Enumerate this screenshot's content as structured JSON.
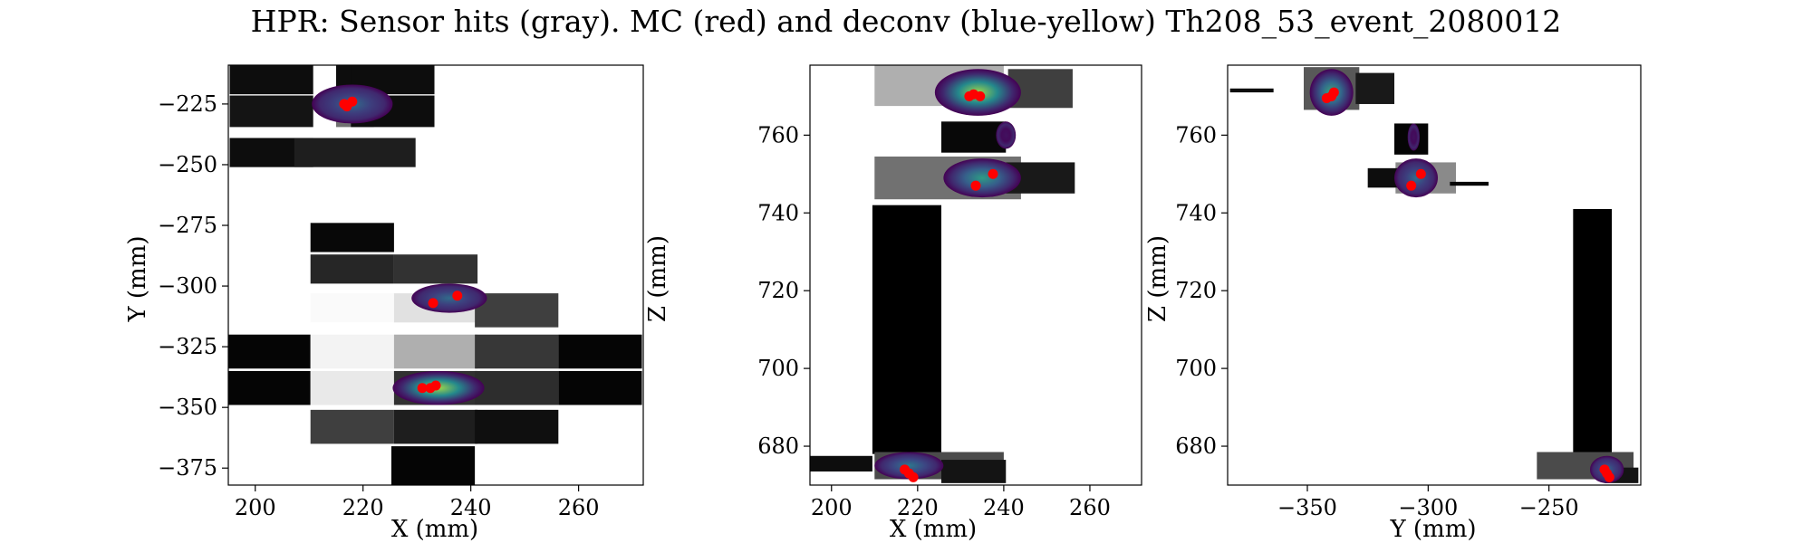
{
  "chart_data": {
    "type": "heatmap",
    "title": "HPR: Sensor hits (gray). MC (red) and deconv (blue-yellow) Th208_53_event_2080012",
    "colors": {
      "mc": "#ff0000",
      "deconv_low": "#440154",
      "deconv_mid": "#21918c",
      "deconv_high": "#fde725"
    },
    "panels": [
      {
        "xlabel": "X (mm)",
        "ylabel": "Y (mm)",
        "xlim": [
          195,
          272
        ],
        "ylim": [
          -382,
          -209
        ],
        "xticks": [
          200,
          220,
          240,
          260
        ],
        "yticks": [
          -375,
          -350,
          -325,
          -300,
          -275,
          -250,
          -225
        ],
        "xtick_labels": [
          "200",
          "220",
          "240",
          "260"
        ],
        "ytick_labels": [
          "−375",
          "−350",
          "−325",
          "−300",
          "−275",
          "−250",
          "−225"
        ],
        "sensor_hits": [
          {
            "x": 203,
            "y": -215,
            "w": 15.5,
            "h": 12,
            "level": 0.05
          },
          {
            "x": 218.5,
            "y": -215,
            "w": 7,
            "h": 12,
            "level": 0.05
          },
          {
            "x": 225.5,
            "y": -215,
            "w": 15.5,
            "h": 12,
            "level": 0.05
          },
          {
            "x": 203,
            "y": -228,
            "w": 15.5,
            "h": 13,
            "level": 0.08
          },
          {
            "x": 218.5,
            "y": -228,
            "w": 7,
            "h": 13,
            "level": 0.45
          },
          {
            "x": 225.5,
            "y": -228,
            "w": 15.5,
            "h": 13,
            "level": 0.05
          },
          {
            "x": 203,
            "y": -245,
            "w": 15.5,
            "h": 12,
            "level": 0.05
          },
          {
            "x": 218.5,
            "y": -245,
            "w": 22.5,
            "h": 12,
            "level": 0.12
          },
          {
            "x": 218,
            "y": -280,
            "w": 15.5,
            "h": 12,
            "level": 0.03
          },
          {
            "x": 218,
            "y": -293,
            "w": 15.5,
            "h": 12,
            "level": 0.15
          },
          {
            "x": 233.5,
            "y": -293,
            "w": 15.5,
            "h": 12,
            "level": 0.2
          },
          {
            "x": 218,
            "y": -309,
            "w": 15.5,
            "h": 12,
            "level": 1.0
          },
          {
            "x": 233.5,
            "y": -309,
            "w": 15.5,
            "h": 12,
            "level": 0.9
          },
          {
            "x": 248.5,
            "y": -310,
            "w": 15.5,
            "h": 14,
            "level": 0.25
          },
          {
            "x": 202.5,
            "y": -327,
            "w": 15.5,
            "h": 14,
            "level": 0.02
          },
          {
            "x": 218,
            "y": -327,
            "w": 15.5,
            "h": 14,
            "level": 0.97
          },
          {
            "x": 233.5,
            "y": -327,
            "w": 15.5,
            "h": 14,
            "level": 0.7
          },
          {
            "x": 248.5,
            "y": -327,
            "w": 15.5,
            "h": 14,
            "level": 0.22
          },
          {
            "x": 264,
            "y": -327,
            "w": 15.5,
            "h": 14,
            "level": 0.02
          },
          {
            "x": 202.5,
            "y": -342,
            "w": 15.5,
            "h": 14,
            "level": 0.02
          },
          {
            "x": 218,
            "y": -342,
            "w": 15.5,
            "h": 14,
            "level": 0.93
          },
          {
            "x": 233.5,
            "y": -342,
            "w": 15.5,
            "h": 14,
            "level": 0.2
          },
          {
            "x": 248.5,
            "y": -342,
            "w": 15.5,
            "h": 14,
            "level": 0.18
          },
          {
            "x": 264,
            "y": -342,
            "w": 15.5,
            "h": 14,
            "level": 0.02
          },
          {
            "x": 218,
            "y": -358,
            "w": 15.5,
            "h": 14,
            "level": 0.25
          },
          {
            "x": 233.5,
            "y": -358,
            "w": 15.5,
            "h": 14,
            "level": 0.12
          },
          {
            "x": 248.5,
            "y": -358,
            "w": 15.5,
            "h": 14,
            "level": 0.06
          },
          {
            "x": 233,
            "y": -374,
            "w": 15.5,
            "h": 16,
            "level": 0.02
          }
        ],
        "deconv_blobs": [
          {
            "x": 218,
            "y": -225,
            "rx": 7.5,
            "ry": 8,
            "peak": 0.35
          },
          {
            "x": 236,
            "y": -305,
            "rx": 7,
            "ry": 6,
            "peak": 0.35
          },
          {
            "x": 234,
            "y": -342,
            "rx": 8.5,
            "ry": 7,
            "peak": 0.85
          }
        ],
        "mc_hits": [
          {
            "x": 216.5,
            "y": -225
          },
          {
            "x": 218,
            "y": -224
          },
          {
            "x": 217,
            "y": -226
          },
          {
            "x": 233,
            "y": -307
          },
          {
            "x": 237.5,
            "y": -304
          },
          {
            "x": 231,
            "y": -342
          },
          {
            "x": 232.5,
            "y": -342
          },
          {
            "x": 233.5,
            "y": -341
          }
        ]
      },
      {
        "xlabel": "X (mm)",
        "ylabel": "Z (mm)",
        "xlim": [
          195,
          272
        ],
        "ylim": [
          670,
          778
        ],
        "xticks": [
          200,
          220,
          240,
          260
        ],
        "yticks": [
          680,
          700,
          720,
          740,
          760
        ],
        "xtick_labels": [
          "200",
          "220",
          "240",
          "260"
        ],
        "ytick_labels": [
          "680",
          "700",
          "720",
          "740",
          "760"
        ],
        "sensor_hits": [
          {
            "x": 217.5,
            "y": 710,
            "w": 16,
            "h": 64,
            "level": 0.0
          },
          {
            "x": 225,
            "y": 773,
            "w": 30,
            "h": 11,
            "level": 0.7
          },
          {
            "x": 248.5,
            "y": 772,
            "w": 15,
            "h": 10,
            "level": 0.25
          },
          {
            "x": 233,
            "y": 759.5,
            "w": 15,
            "h": 8,
            "level": 0.03
          },
          {
            "x": 227,
            "y": 749,
            "w": 34,
            "h": 11,
            "level": 0.45
          },
          {
            "x": 248.5,
            "y": 749,
            "w": 16,
            "h": 8,
            "level": 0.1
          },
          {
            "x": 225,
            "y": 675,
            "w": 30,
            "h": 7,
            "level": 0.3
          },
          {
            "x": 201.5,
            "y": 675.5,
            "w": 16,
            "h": 4,
            "level": 0.05
          },
          {
            "x": 233,
            "y": 673.5,
            "w": 15,
            "h": 6,
            "level": 0.08
          }
        ],
        "deconv_blobs": [
          {
            "x": 234,
            "y": 771,
            "rx": 10,
            "ry": 6,
            "peak": 0.85
          },
          {
            "x": 235,
            "y": 749,
            "rx": 9,
            "ry": 5,
            "peak": 0.55
          },
          {
            "x": 218,
            "y": 675,
            "rx": 8,
            "ry": 3.5,
            "peak": 0.4
          },
          {
            "x": 240.5,
            "y": 760,
            "rx": 2.3,
            "ry": 3.5,
            "peak": 0.05
          }
        ],
        "mc_hits": [
          {
            "x": 232,
            "y": 770
          },
          {
            "x": 234.5,
            "y": 770
          },
          {
            "x": 233,
            "y": 770.5
          },
          {
            "x": 233.5,
            "y": 747
          },
          {
            "x": 237.5,
            "y": 750
          },
          {
            "x": 217,
            "y": 674
          },
          {
            "x": 218,
            "y": 673
          },
          {
            "x": 219,
            "y": 672
          }
        ]
      },
      {
        "xlabel": "Y (mm)",
        "ylabel": "Z (mm)",
        "xlim": [
          -383,
          -212
        ],
        "ylim": [
          670,
          778
        ],
        "xticks": [
          -350,
          -300,
          -250
        ],
        "yticks": [
          680,
          700,
          720,
          740,
          760
        ],
        "xtick_labels": [
          "−350",
          "−300",
          "−250"
        ],
        "ytick_labels": [
          "680",
          "700",
          "720",
          "740",
          "760"
        ],
        "sensor_hits": [
          {
            "x": -340,
            "y": 772,
            "w": 23,
            "h": 11,
            "level": 0.35
          },
          {
            "x": -322,
            "y": 772,
            "w": 16,
            "h": 8,
            "level": 0.1
          },
          {
            "x": -373,
            "y": 771.5,
            "w": 18,
            "h": 1,
            "level": 0.05
          },
          {
            "x": -307,
            "y": 759,
            "w": 14,
            "h": 8,
            "level": 0.02
          },
          {
            "x": -301,
            "y": 749,
            "w": 25,
            "h": 8,
            "level": 0.55
          },
          {
            "x": -317,
            "y": 749,
            "w": 16,
            "h": 5,
            "level": 0.05
          },
          {
            "x": -283,
            "y": 747.5,
            "w": 16,
            "h": 1,
            "level": 0.02
          },
          {
            "x": -232,
            "y": 709,
            "w": 16,
            "h": 64,
            "level": 0.0
          },
          {
            "x": -235,
            "y": 675,
            "w": 40,
            "h": 7,
            "level": 0.3
          },
          {
            "x": -220,
            "y": 672.5,
            "w": 14,
            "h": 4,
            "level": 0.08
          }
        ],
        "deconv_blobs": [
          {
            "x": -340,
            "y": 771,
            "rx": 9,
            "ry": 6,
            "peak": 0.6
          },
          {
            "x": -305,
            "y": 749,
            "rx": 9,
            "ry": 5,
            "peak": 0.35
          },
          {
            "x": -226,
            "y": 674,
            "rx": 7,
            "ry": 3.5,
            "peak": 0.35
          },
          {
            "x": -306,
            "y": 759.5,
            "rx": 2.5,
            "ry": 3.5,
            "peak": 0.05
          }
        ],
        "mc_hits": [
          {
            "x": -342,
            "y": 769.5
          },
          {
            "x": -340,
            "y": 770
          },
          {
            "x": -339,
            "y": 771
          },
          {
            "x": -307,
            "y": 747
          },
          {
            "x": -303,
            "y": 750
          },
          {
            "x": -227,
            "y": 674
          },
          {
            "x": -226,
            "y": 673
          },
          {
            "x": -225,
            "y": 672
          }
        ]
      }
    ]
  }
}
